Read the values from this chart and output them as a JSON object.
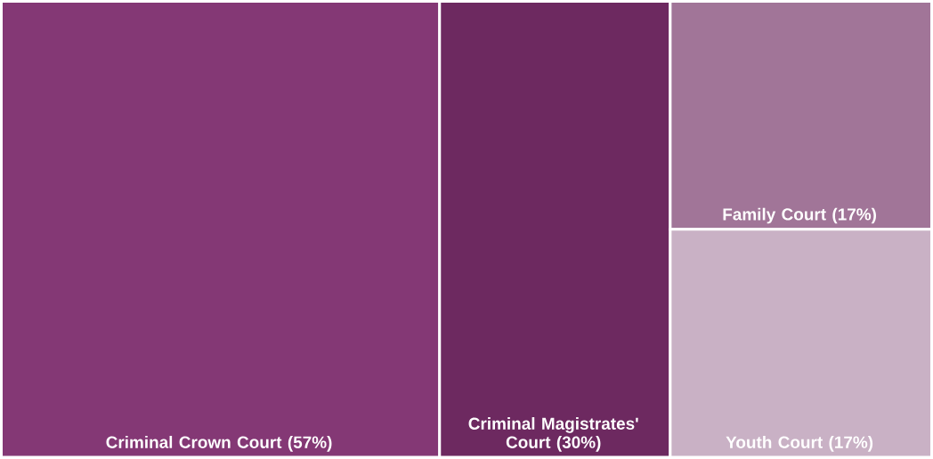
{
  "chart_data": {
    "type": "other",
    "categories": [
      "Criminal Crown Court",
      "Criminal Magistrates' Court",
      "Family Court",
      "Youth Court"
    ],
    "values": [
      57,
      30,
      17,
      17
    ],
    "value_labels": [
      "(57%)",
      "(30%)",
      "(17%)",
      "(17%)"
    ],
    "colors": [
      "#843875",
      "#6d2960",
      "#a17598",
      "#c9b1c5"
    ]
  }
}
